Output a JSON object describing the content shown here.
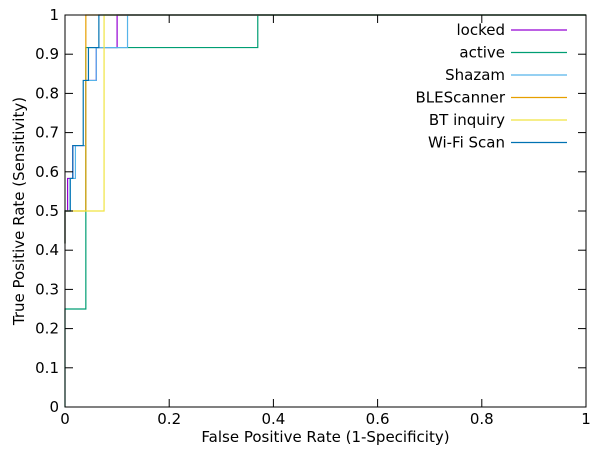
{
  "chart_data": {
    "type": "line",
    "title": "",
    "xlabel": "False Positive Rate (1-Specificity)",
    "ylabel": "True Positive Rate (Sensitivity)",
    "xlim": [
      0,
      1
    ],
    "ylim": [
      0,
      1
    ],
    "xticks": [
      0,
      0.2,
      0.4,
      0.6,
      0.8,
      1
    ],
    "xtick_labels": [
      "0",
      "0.2",
      "0.4",
      "0.6",
      "0.8",
      "1"
    ],
    "yticks": [
      0,
      0.1,
      0.2,
      0.3,
      0.4,
      0.5,
      0.6,
      0.7,
      0.8,
      0.9,
      1
    ],
    "ytick_labels": [
      "0",
      "0.1",
      "0.2",
      "0.3",
      "0.4",
      "0.5",
      "0.6",
      "0.7",
      "0.8",
      "0.9",
      "1"
    ],
    "grid": false,
    "legend_position": "top-right",
    "series": [
      {
        "name": "locked",
        "color": "#9400d3",
        "points": [
          [
            0,
            0.417
          ],
          [
            0,
            0.5
          ],
          [
            0.005,
            0.5
          ],
          [
            0.005,
            0.583
          ],
          [
            0.015,
            0.583
          ],
          [
            0.015,
            0.667
          ],
          [
            0.04,
            0.667
          ],
          [
            0.04,
            0.833
          ],
          [
            0.06,
            0.833
          ],
          [
            0.06,
            0.917
          ],
          [
            0.1,
            0.917
          ],
          [
            0.1,
            1
          ],
          [
            1,
            1
          ]
        ]
      },
      {
        "name": "active",
        "color": "#009e73",
        "points": [
          [
            0,
            0
          ],
          [
            0,
            0.25
          ],
          [
            0.04,
            0.25
          ],
          [
            0.04,
            0.917
          ],
          [
            0.37,
            0.917
          ],
          [
            0.37,
            1
          ],
          [
            1,
            1
          ]
        ]
      },
      {
        "name": "Shazam",
        "color": "#56b4e9",
        "points": [
          [
            0,
            0.417
          ],
          [
            0,
            0.5
          ],
          [
            0.01,
            0.5
          ],
          [
            0.01,
            0.583
          ],
          [
            0.02,
            0.583
          ],
          [
            0.02,
            0.667
          ],
          [
            0.04,
            0.667
          ],
          [
            0.04,
            0.833
          ],
          [
            0.06,
            0.833
          ],
          [
            0.06,
            0.917
          ],
          [
            0.12,
            0.917
          ],
          [
            0.12,
            1
          ],
          [
            1,
            1
          ]
        ]
      },
      {
        "name": "BLEScanner",
        "color": "#e69f00",
        "points": [
          [
            0,
            0.417
          ],
          [
            0,
            0.5
          ],
          [
            0.04,
            0.5
          ],
          [
            0.04,
            1
          ],
          [
            1,
            1
          ]
        ]
      },
      {
        "name": "BT inquiry",
        "color": "#f0e442",
        "points": [
          [
            0,
            0.417
          ],
          [
            0,
            0.5
          ],
          [
            0.075,
            0.5
          ],
          [
            0.075,
            1
          ],
          [
            1,
            1
          ]
        ]
      },
      {
        "name": "Wi-Fi Scan",
        "color": "#0072b2",
        "points": [
          [
            0,
            0.417
          ],
          [
            0,
            0.5
          ],
          [
            0.01,
            0.5
          ],
          [
            0.01,
            0.583
          ],
          [
            0.015,
            0.583
          ],
          [
            0.015,
            0.667
          ],
          [
            0.035,
            0.667
          ],
          [
            0.035,
            0.833
          ],
          [
            0.045,
            0.833
          ],
          [
            0.045,
            0.917
          ],
          [
            0.065,
            0.917
          ],
          [
            0.065,
            1
          ],
          [
            1,
            1
          ]
        ]
      }
    ]
  }
}
